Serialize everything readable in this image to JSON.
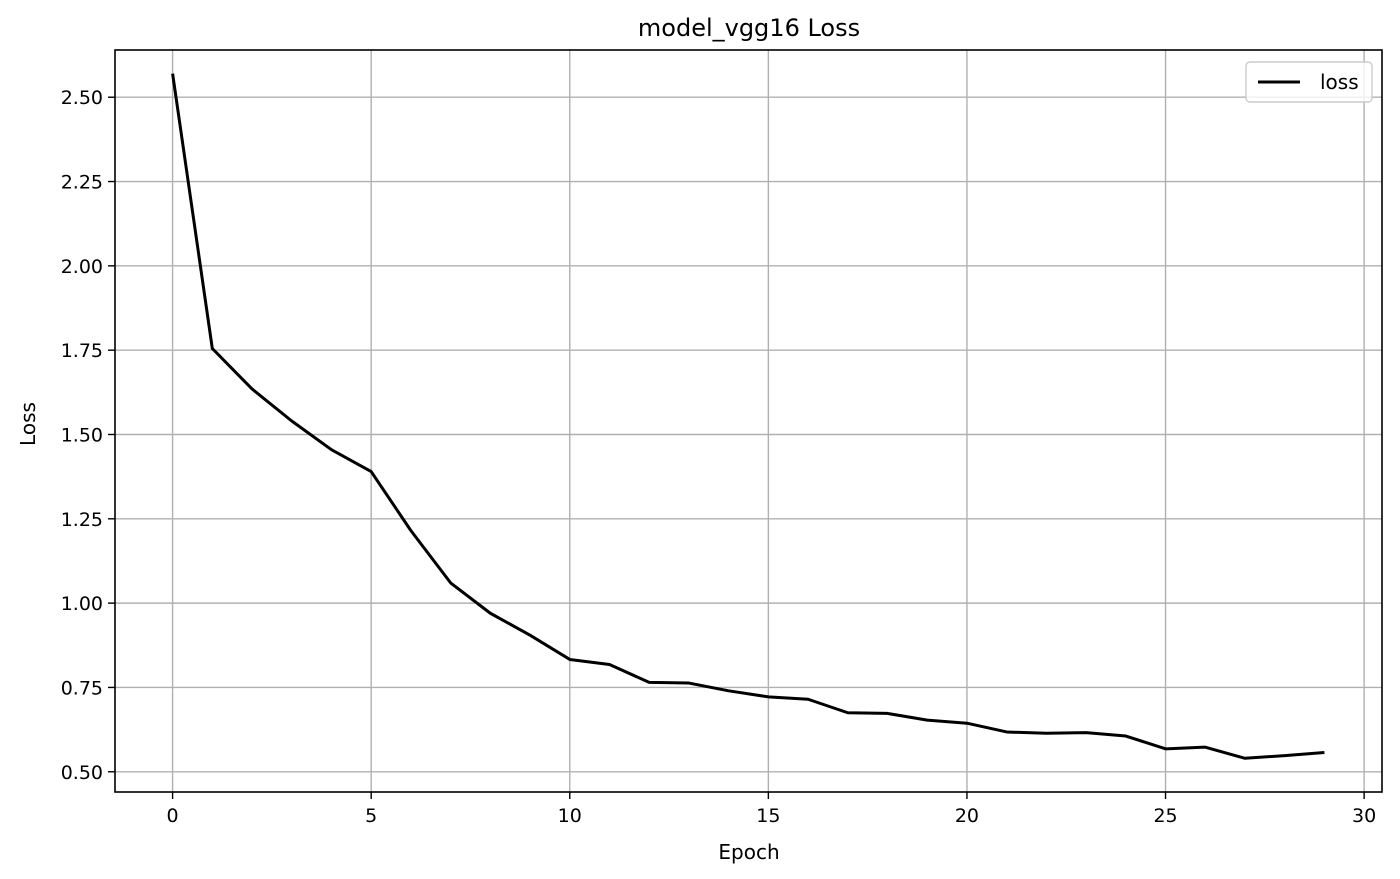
{
  "chart_data": {
    "type": "line",
    "title": "model_vgg16 Loss",
    "xlabel": "Epoch",
    "ylabel": "Loss",
    "xlim": [
      -1.45,
      30.45
    ],
    "ylim": [
      0.44,
      2.64
    ],
    "xticks": [
      0,
      5,
      10,
      15,
      20,
      25,
      30
    ],
    "xtick_labels": [
      "0",
      "5",
      "10",
      "15",
      "20",
      "25",
      "30"
    ],
    "yticks": [
      0.5,
      0.75,
      1.0,
      1.25,
      1.5,
      1.75,
      2.0,
      2.25,
      2.5
    ],
    "ytick_labels": [
      "0.50",
      "0.75",
      "1.00",
      "1.25",
      "1.50",
      "1.75",
      "2.00",
      "2.25",
      "2.50"
    ],
    "grid": true,
    "legend_position": "top-right",
    "series": [
      {
        "name": "loss",
        "color": "#000000",
        "x": [
          0,
          1,
          2,
          3,
          4,
          5,
          6,
          7,
          8,
          9,
          10,
          11,
          12,
          13,
          14,
          15,
          16,
          17,
          18,
          19,
          20,
          21,
          22,
          23,
          24,
          25,
          26,
          27,
          28,
          29
        ],
        "y": [
          2.57,
          1.755,
          1.635,
          1.54,
          1.455,
          1.39,
          1.215,
          1.06,
          0.97,
          0.905,
          0.833,
          0.818,
          0.765,
          0.763,
          0.74,
          0.722,
          0.715,
          0.675,
          0.673,
          0.653,
          0.644,
          0.618,
          0.614,
          0.616,
          0.606,
          0.568,
          0.573,
          0.54,
          0.548,
          0.557
        ]
      }
    ]
  }
}
